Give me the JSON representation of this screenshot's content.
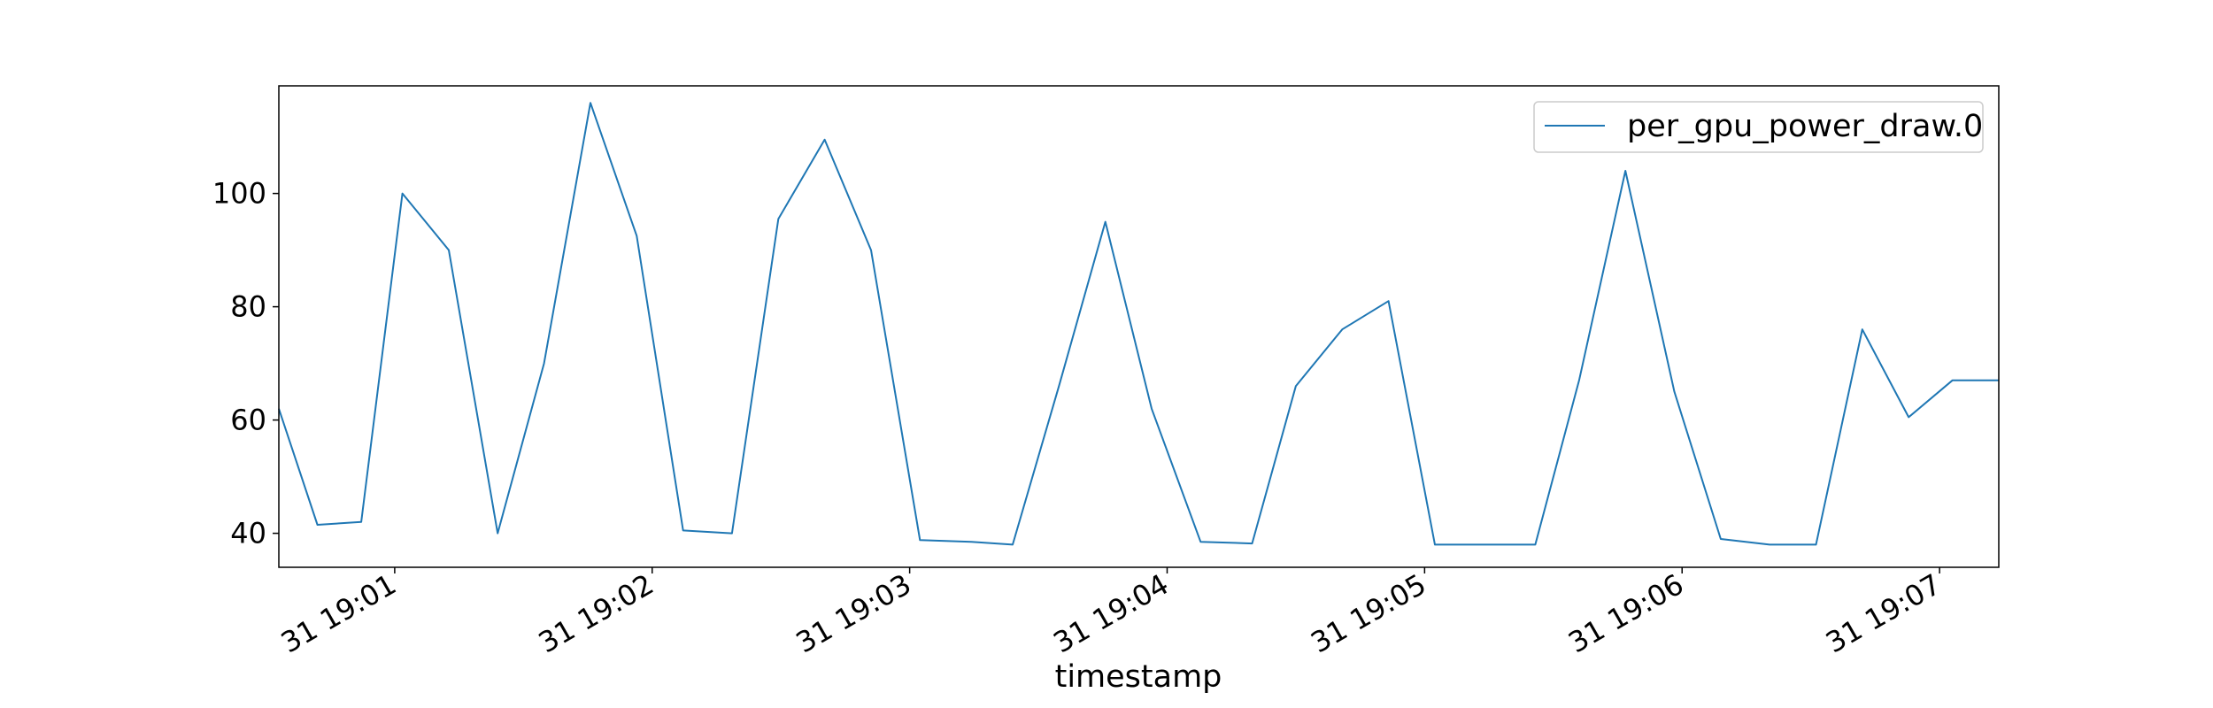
{
  "chart_data": {
    "type": "line",
    "title": "",
    "xlabel": "timestamp",
    "ylabel": "",
    "x_tick_labels": [
      "31 19:01",
      "31 19:02",
      "31 19:03",
      "31 19:04",
      "31 19:05",
      "31 19:06",
      "31 19:07"
    ],
    "x_tick_positions_min": [
      1,
      2,
      3,
      4,
      5,
      6,
      7
    ],
    "y_ticks": [
      40,
      60,
      80,
      100
    ],
    "xlim": [
      0.55,
      7.23
    ],
    "ylim": [
      34,
      119
    ],
    "grid": false,
    "legend": {
      "position": "top-right",
      "entries": [
        "per_gpu_power_draw.0"
      ]
    },
    "series": [
      {
        "name": "per_gpu_power_draw.0",
        "color": "#1f77b4",
        "x": [
          0.55,
          0.7,
          0.87,
          1.03,
          1.21,
          1.4,
          1.58,
          1.76,
          1.94,
          2.12,
          2.31,
          2.49,
          2.67,
          2.85,
          3.04,
          3.24,
          3.4,
          3.58,
          3.76,
          3.94,
          4.13,
          4.33,
          4.5,
          4.68,
          4.86,
          5.04,
          5.23,
          5.43,
          5.6,
          5.78,
          5.97,
          6.15,
          6.34,
          6.52,
          6.7,
          6.88,
          7.05,
          7.23
        ],
        "values": [
          62,
          41.5,
          42,
          100,
          90,
          40,
          70,
          116,
          92.5,
          40.5,
          40,
          95.5,
          109.5,
          90,
          38.8,
          38.5,
          38,
          66,
          95,
          62,
          38.5,
          38.2,
          66,
          76,
          81,
          38,
          38,
          38,
          67,
          104,
          65,
          39,
          38,
          38,
          76,
          60.5,
          67,
          67
        ]
      }
    ]
  }
}
